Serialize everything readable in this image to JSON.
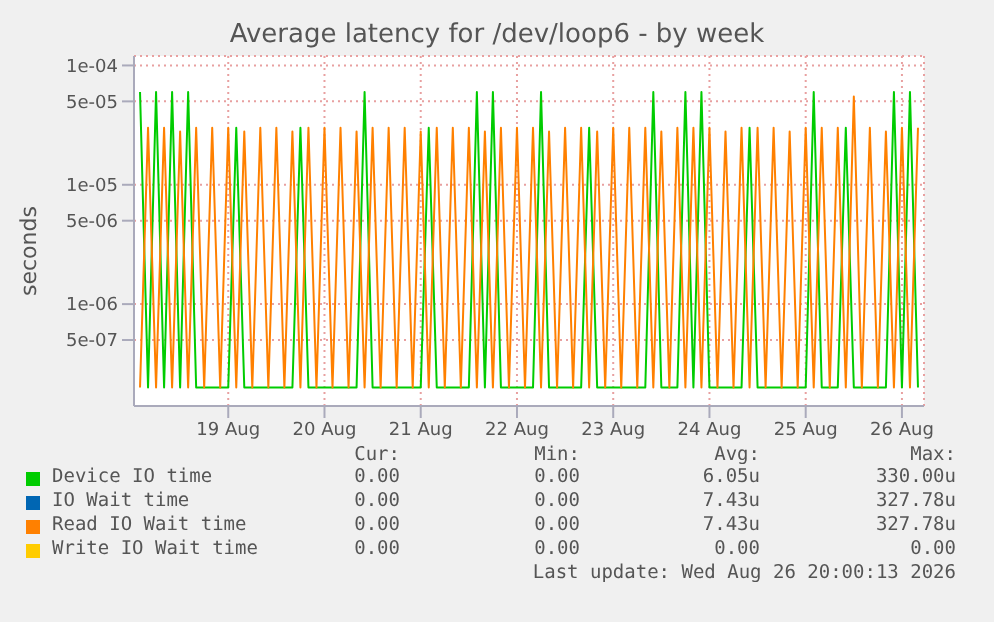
{
  "chart_data": {
    "type": "line",
    "title": "Average latency for /dev/loop6 - by week",
    "ylabel": "seconds",
    "log": "y",
    "grid": true,
    "legend": "bottom",
    "ylim": [
      1.4e-07,
      0.00012
    ],
    "yticks": [
      {
        "value": 0.0001,
        "label": "1e-04"
      },
      {
        "value": 5e-05,
        "label": "5e-05"
      },
      {
        "value": 1e-05,
        "label": "1e-05"
      },
      {
        "value": 5e-06,
        "label": "5e-06"
      },
      {
        "value": 1e-06,
        "label": "1e-06"
      },
      {
        "value": 5e-07,
        "label": "5e-07"
      }
    ],
    "xlim": [
      "2026-08-18T00:30",
      "2026-08-26T05:30"
    ],
    "xticks": [
      {
        "value": "2026-08-19",
        "label": "19 Aug"
      },
      {
        "value": "2026-08-20",
        "label": "20 Aug"
      },
      {
        "value": "2026-08-21",
        "label": "21 Aug"
      },
      {
        "value": "2026-08-22",
        "label": "22 Aug"
      },
      {
        "value": "2026-08-23",
        "label": "23 Aug"
      },
      {
        "value": "2026-08-24",
        "label": "24 Aug"
      },
      {
        "value": "2026-08-25",
        "label": "25 Aug"
      },
      {
        "value": "2026-08-26",
        "label": "26 Aug"
      }
    ],
    "x": [
      "2026-08-18T02:00",
      "2026-08-18T04:00",
      "2026-08-18T06:00",
      "2026-08-18T08:00",
      "2026-08-18T10:00",
      "2026-08-18T12:00",
      "2026-08-18T14:00",
      "2026-08-18T16:00",
      "2026-08-18T18:00",
      "2026-08-18T20:00",
      "2026-08-18T22:00",
      "2026-08-19T00:00",
      "2026-08-19T02:00",
      "2026-08-19T04:00",
      "2026-08-19T06:00",
      "2026-08-19T08:00",
      "2026-08-19T10:00",
      "2026-08-19T12:00",
      "2026-08-19T14:00",
      "2026-08-19T16:00",
      "2026-08-19T18:00",
      "2026-08-19T20:00",
      "2026-08-19T22:00",
      "2026-08-20T00:00",
      "2026-08-20T02:00",
      "2026-08-20T04:00",
      "2026-08-20T06:00",
      "2026-08-20T08:00",
      "2026-08-20T10:00",
      "2026-08-20T12:00",
      "2026-08-20T14:00",
      "2026-08-20T16:00",
      "2026-08-20T18:00",
      "2026-08-20T20:00",
      "2026-08-20T22:00",
      "2026-08-21T00:00",
      "2026-08-21T02:00",
      "2026-08-21T04:00",
      "2026-08-21T06:00",
      "2026-08-21T08:00",
      "2026-08-21T10:00",
      "2026-08-21T12:00",
      "2026-08-21T14:00",
      "2026-08-21T16:00",
      "2026-08-21T18:00",
      "2026-08-21T20:00",
      "2026-08-21T22:00",
      "2026-08-22T00:00",
      "2026-08-22T02:00",
      "2026-08-22T04:00",
      "2026-08-22T06:00",
      "2026-08-22T08:00",
      "2026-08-22T10:00",
      "2026-08-22T12:00",
      "2026-08-22T14:00",
      "2026-08-22T16:00",
      "2026-08-22T18:00",
      "2026-08-22T20:00",
      "2026-08-22T22:00",
      "2026-08-23T00:00",
      "2026-08-23T02:00",
      "2026-08-23T04:00",
      "2026-08-23T06:00",
      "2026-08-23T08:00",
      "2026-08-23T10:00",
      "2026-08-23T12:00",
      "2026-08-23T14:00",
      "2026-08-23T16:00",
      "2026-08-23T18:00",
      "2026-08-23T20:00",
      "2026-08-23T22:00",
      "2026-08-24T00:00",
      "2026-08-24T02:00",
      "2026-08-24T04:00",
      "2026-08-24T06:00",
      "2026-08-24T08:00",
      "2026-08-24T10:00",
      "2026-08-24T12:00",
      "2026-08-24T14:00",
      "2026-08-24T16:00",
      "2026-08-24T18:00",
      "2026-08-24T20:00",
      "2026-08-24T22:00",
      "2026-08-25T00:00",
      "2026-08-25T02:00",
      "2026-08-25T04:00",
      "2026-08-25T06:00",
      "2026-08-25T08:00",
      "2026-08-25T10:00",
      "2026-08-25T12:00",
      "2026-08-25T14:00",
      "2026-08-25T16:00",
      "2026-08-25T18:00",
      "2026-08-25T20:00",
      "2026-08-25T22:00",
      "2026-08-26T00:00",
      "2026-08-26T02:00",
      "2026-08-26T04:00"
    ],
    "series": [
      {
        "name": "Device IO time",
        "color": "#00cc00",
        "values": [
          6e-05,
          2e-07,
          6e-05,
          2e-07,
          6e-05,
          2e-07,
          6e-05,
          2e-07,
          2e-07,
          2e-07,
          2e-07,
          2e-07,
          3e-05,
          2e-07,
          2e-07,
          2e-07,
          2e-07,
          2e-07,
          2e-07,
          2e-07,
          3e-05,
          2e-07,
          2e-07,
          2e-07,
          2e-07,
          2e-07,
          2e-07,
          2e-07,
          6e-05,
          2e-07,
          2e-07,
          2e-07,
          2e-07,
          2e-07,
          2e-07,
          2e-07,
          3e-05,
          2e-07,
          2e-07,
          2e-07,
          2e-07,
          2e-07,
          6e-05,
          2e-07,
          6e-05,
          2e-07,
          2e-07,
          2e-07,
          2e-07,
          2e-07,
          6e-05,
          2e-07,
          2e-07,
          2e-07,
          2e-07,
          2e-07,
          3e-05,
          2e-07,
          2e-07,
          2e-07,
          2e-07,
          2e-07,
          2e-07,
          2e-07,
          6e-05,
          2e-07,
          2e-07,
          2e-07,
          6e-05,
          2e-07,
          6e-05,
          2e-07,
          2e-07,
          2e-07,
          2e-07,
          2e-07,
          3e-05,
          2e-07,
          2e-07,
          2e-07,
          2e-07,
          2e-07,
          2e-07,
          2e-07,
          6e-05,
          2e-07,
          2e-07,
          2e-07,
          3e-05,
          2e-07,
          2e-07,
          2e-07,
          2e-07,
          2e-07,
          6e-05,
          2e-07,
          6e-05,
          2e-07
        ]
      },
      {
        "name": "IO Wait time",
        "color": "#0066b3",
        "values": [
          null,
          null,
          null,
          null,
          null,
          null,
          null,
          null,
          null,
          null,
          null,
          null,
          null,
          null,
          null,
          null,
          null,
          null,
          null,
          null,
          null,
          null,
          null,
          null,
          null,
          null,
          null,
          null,
          null,
          null,
          null,
          null,
          null,
          null,
          null,
          null,
          null,
          null,
          null,
          null,
          null,
          null,
          null,
          null,
          null,
          null,
          null,
          null,
          null,
          null,
          null,
          null,
          null,
          null,
          null,
          null,
          null,
          null,
          null,
          null,
          null,
          null,
          null,
          null,
          null,
          null,
          null,
          null,
          null,
          null,
          null,
          null,
          null,
          null,
          null,
          null,
          null,
          null,
          null,
          null,
          null,
          null,
          null,
          null,
          null,
          null,
          null,
          null,
          null,
          null,
          null,
          null,
          null,
          null,
          null,
          null,
          null,
          null
        ]
      },
      {
        "name": "Read IO Wait time",
        "color": "#ff8000",
        "values": [
          2e-07,
          3e-05,
          2e-07,
          3e-05,
          2e-07,
          2.8e-05,
          2e-07,
          3e-05,
          2e-07,
          3e-05,
          2e-07,
          3e-05,
          2e-07,
          2.8e-05,
          2e-07,
          3e-05,
          2e-07,
          3e-05,
          2e-07,
          2.8e-05,
          2e-07,
          3e-05,
          2e-07,
          3e-05,
          2e-07,
          3e-05,
          2e-07,
          2.8e-05,
          2e-07,
          3e-05,
          2e-07,
          3e-05,
          2e-07,
          3e-05,
          2e-07,
          2.8e-05,
          2e-07,
          3e-05,
          2e-07,
          3e-05,
          2e-07,
          3e-05,
          2e-07,
          2.8e-05,
          2e-07,
          3e-05,
          2e-07,
          3e-05,
          2e-07,
          3e-05,
          2e-07,
          2.8e-05,
          2e-07,
          3e-05,
          2e-07,
          3e-05,
          2e-07,
          2.8e-05,
          2e-07,
          3e-05,
          2e-07,
          3e-05,
          2e-07,
          3e-05,
          2e-07,
          2.8e-05,
          2e-07,
          3e-05,
          2e-07,
          3e-05,
          2e-07,
          3e-05,
          2e-07,
          2.8e-05,
          2e-07,
          3e-05,
          2e-07,
          3e-05,
          2e-07,
          3e-05,
          2e-07,
          2.8e-05,
          2e-07,
          3e-05,
          2e-07,
          3e-05,
          2e-07,
          3e-05,
          2e-07,
          5.5e-05,
          2e-07,
          3e-05,
          2e-07,
          2.8e-05,
          2e-07,
          3e-05,
          2e-07,
          3e-05
        ]
      },
      {
        "name": "Write IO Wait time",
        "color": "#ffcc00",
        "values": [
          null,
          null,
          null,
          null,
          null,
          null,
          null,
          null,
          null,
          null,
          null,
          null,
          null,
          null,
          null,
          null,
          null,
          null,
          null,
          null,
          null,
          null,
          null,
          null,
          null,
          null,
          null,
          null,
          null,
          null,
          null,
          null,
          null,
          null,
          null,
          null,
          null,
          null,
          null,
          null,
          null,
          null,
          null,
          null,
          null,
          null,
          null,
          null,
          null,
          null,
          null,
          null,
          null,
          null,
          null,
          null,
          null,
          null,
          null,
          null,
          null,
          null,
          null,
          null,
          null,
          null,
          null,
          null,
          null,
          null,
          null,
          null,
          null,
          null,
          null,
          null,
          null,
          null,
          null,
          null,
          null,
          null,
          null,
          null,
          null,
          null,
          null,
          null,
          null,
          null,
          null,
          null,
          null,
          null,
          null,
          null,
          null,
          null
        ]
      }
    ],
    "annotations": [
      "Cur:",
      "Min:",
      "Avg:",
      "Max:",
      "0.00",
      "0.00",
      "6.05u",
      "330.00u",
      "0.00",
      "0.00",
      "7.43u",
      "327.78u",
      "0.00",
      "0.00",
      "7.43u",
      "327.78u",
      "0.00",
      "0.00",
      "0.00",
      "0.00",
      "Last update: Wed Aug 26 20:00:13 2026"
    ]
  }
}
